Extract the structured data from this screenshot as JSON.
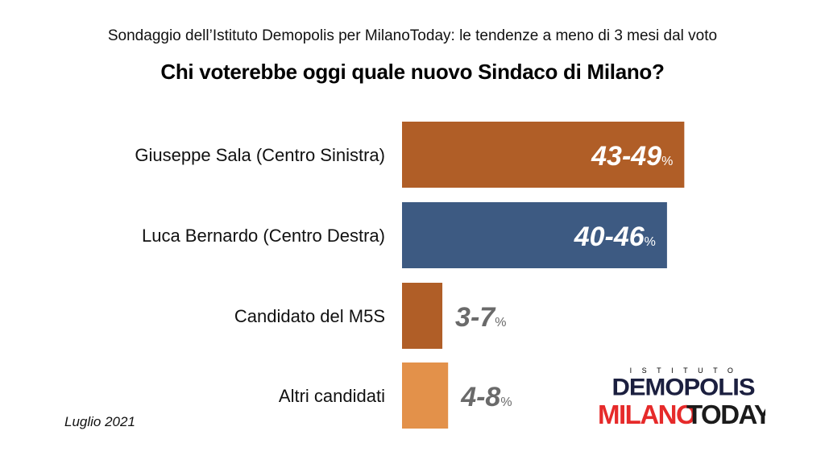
{
  "header": {
    "subtitle": "Sondaggio dell’Istituto Demopolis per MilanoToday: le tendenze a meno di 3 mesi dal voto",
    "title": "Chi voterebbe oggi quale nuovo Sindaco di Milano?"
  },
  "footer": {
    "date": "Luglio 2021"
  },
  "logos": {
    "demopolis_top": "ISTITUTO",
    "demopolis": "DEMOPOLIS",
    "milano": "MILANO",
    "today": "TODAY"
  },
  "chart_data": {
    "type": "bar",
    "orientation": "horizontal",
    "categories": [
      "Giuseppe Sala (Centro Sinistra)",
      "Luca Bernardo (Centro Destra)",
      "Candidato del M5S",
      "Altri candidati"
    ],
    "ranges": [
      [
        43,
        49
      ],
      [
        40,
        46
      ],
      [
        3,
        7
      ],
      [
        4,
        8
      ]
    ],
    "values": [
      49,
      46,
      7,
      8
    ],
    "labels": [
      "43-49",
      "40-46",
      "3-7",
      "4-8"
    ],
    "label_suffix": "%",
    "colors": [
      "#b05e27",
      "#3d5a82",
      "#b05e27",
      "#e3914a"
    ],
    "title": "Chi voterebbe oggi quale nuovo Sindaco di Milano?",
    "xlim": [
      0,
      50
    ],
    "grid": false,
    "legend": "none"
  }
}
